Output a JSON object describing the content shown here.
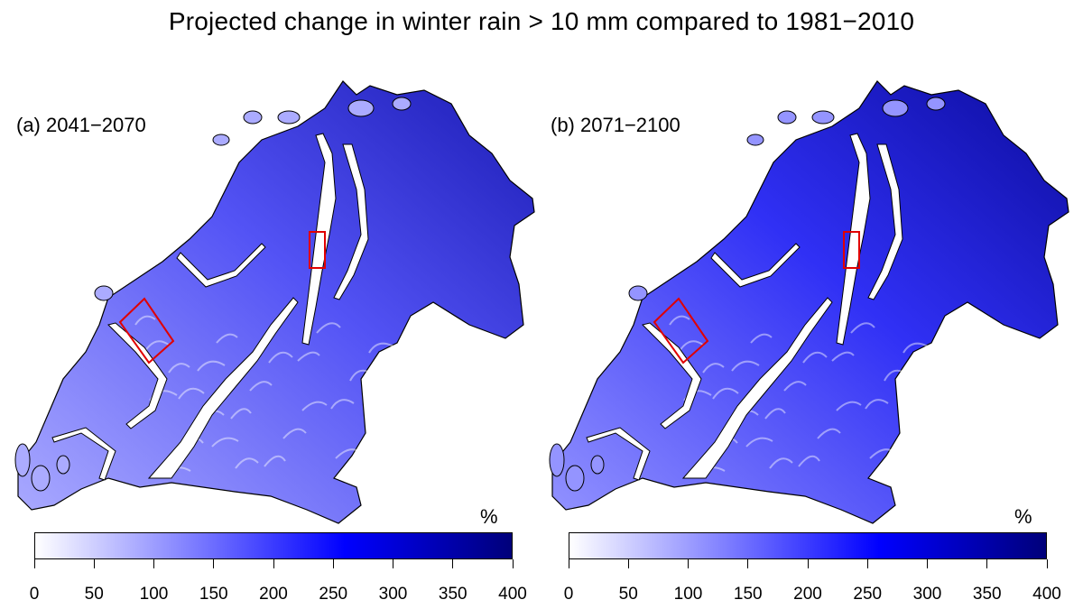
{
  "title": "Projected change in winter rain > 10 mm compared to 1981−2010",
  "panels": [
    {
      "label": "(a) 2041−2070",
      "intensity": 0.55
    },
    {
      "label": "(b) 2071−2100",
      "intensity": 0.8
    }
  ],
  "colorbar": {
    "unit": "%",
    "min": 0,
    "max": 400,
    "ticks": [
      "0",
      "50",
      "100",
      "150",
      "200",
      "250",
      "300",
      "350",
      "400"
    ],
    "colors": [
      "#ffffff",
      "#0000ff",
      "#00007a"
    ]
  },
  "highlight_color": "#e00000"
}
